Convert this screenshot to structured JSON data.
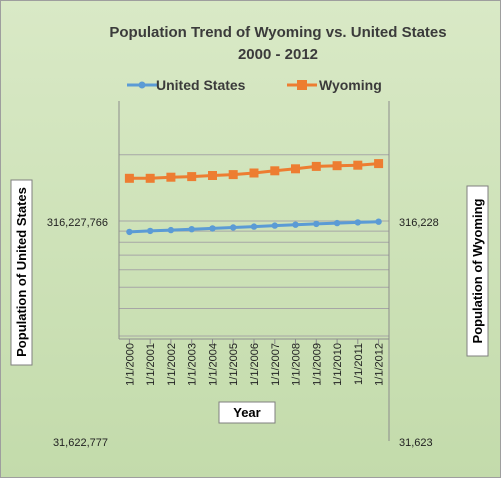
{
  "chart_data": {
    "type": "line",
    "title": [
      "Population Trend of  Wyoming vs. United States",
      "2000 - 2012"
    ],
    "xlabel": "Year",
    "ylabel_left": "Population of United States",
    "ylabel_right": "Population of  Wyoming",
    "categories": [
      "1/1/2000",
      "1/1/2001",
      "1/1/2002",
      "1/1/2003",
      "1/1/2004",
      "1/1/2005",
      "1/1/2006",
      "1/1/2007",
      "1/1/2008",
      "1/1/2009",
      "1/1/2010",
      "1/1/2011",
      "1/1/2012"
    ],
    "y_left": {
      "scale": "log",
      "ticks": [
        316227766,
        31622777
      ],
      "tick_labels": [
        "316,227,766",
        "31,622,777"
      ]
    },
    "y_right": {
      "scale": "log",
      "ticks": [
        316228,
        31623
      ],
      "tick_labels": [
        "316,228",
        "31,623"
      ]
    },
    "series": [
      {
        "name": "United States",
        "axis": "left",
        "color": "#5b9bd5",
        "marker": "circle",
        "values": [
          282162411,
          284968955,
          287625193,
          290107933,
          292805298,
          295516599,
          298379912,
          301231207,
          304093966,
          306771529,
          309326295,
          311587816,
          313914040
        ]
      },
      {
        "name": "Wyoming",
        "axis": "right",
        "color": "#ed7d31",
        "marker": "square",
        "values": [
          494300,
          494657,
          500017,
          503453,
          509106,
          514157,
          522667,
          534876,
          546043,
          559851,
          564358,
          567356,
          576412
        ]
      }
    ],
    "legend_position": "top",
    "grid": true
  }
}
